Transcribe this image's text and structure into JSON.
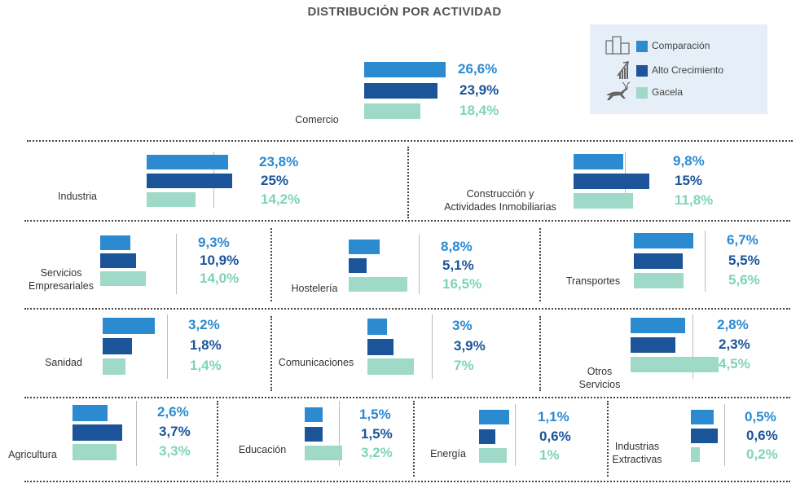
{
  "title": "DISTRIBUCIÓN POR ACTIVIDAD",
  "colors": {
    "comparacion": "#2b8ad0",
    "alto_crecimiento": "#1b5499",
    "gacela": "#9fd9c8",
    "value_comparacion": "#2b8ad0",
    "value_alto_crecimiento": "#1b5499",
    "value_gacela": "#7ed3bb",
    "icon": "#555555"
  },
  "legend": {
    "comparacion": {
      "label": "Comparación",
      "icon": "buildings-icon"
    },
    "alto_crecimiento": {
      "label": "Alto Crecimiento",
      "icon": "growth-arrow-icon"
    },
    "gacela": {
      "label": "Gacela",
      "icon": "gazelle-icon"
    }
  },
  "chart_data": {
    "type": "bar",
    "title": "DISTRIBUCIÓN POR ACTIVIDAD",
    "orientation": "horizontal",
    "series": [
      {
        "name": "Comparación",
        "unit": "%"
      },
      {
        "name": "Alto Crecimiento",
        "unit": "%"
      },
      {
        "name": "Gacela",
        "unit": "%"
      }
    ],
    "categories": [
      {
        "label": "Comercio",
        "icon": "shopping-cart-icon",
        "values": [
          26.6,
          23.9,
          18.4
        ],
        "labels": [
          "26,6%",
          "23,9%",
          "18,4%"
        ]
      },
      {
        "label": "Industria",
        "icon": "gears-icon",
        "values": [
          23.8,
          25,
          14.2
        ],
        "labels": [
          "23,8%",
          "25%",
          "14,2%"
        ]
      },
      {
        "label": "Construcción y\nActividades Inmobiliarias",
        "icon": "house-icon",
        "values": [
          9.8,
          15,
          11.8
        ],
        "labels": [
          "9,8%",
          "15%",
          "11,8%"
        ]
      },
      {
        "label": "Servicios\nEmpresariales",
        "icon": "people-icon",
        "values": [
          9.3,
          10.9,
          14.0
        ],
        "labels": [
          "9,3%",
          "10,9%",
          "14,0%"
        ]
      },
      {
        "label": "Hostelería",
        "icon": "cutlery-icon",
        "values": [
          8.8,
          5.1,
          16.5
        ],
        "labels": [
          "8,8%",
          "5,1%",
          "16,5%"
        ]
      },
      {
        "label": "Transportes",
        "icon": "vehicles-icon",
        "values": [
          6.7,
          5.5,
          5.6
        ],
        "labels": [
          "6,7%",
          "5,5%",
          "5,6%"
        ]
      },
      {
        "label": "Sanidad",
        "icon": "first-aid-kit-icon",
        "values": [
          3.2,
          1.8,
          1.4
        ],
        "labels": [
          "3,2%",
          "1,8%",
          "1,4%"
        ]
      },
      {
        "label": "Comunicaciones",
        "icon": "wifi-icon",
        "values": [
          3,
          3.9,
          7
        ],
        "labels": [
          "3%",
          "3,9%",
          "7%"
        ]
      },
      {
        "label": "Otros\nServicios",
        "icon": "store-icon",
        "values": [
          2.8,
          2.3,
          4.5
        ],
        "labels": [
          "2,8%",
          "2,3%",
          "4,5%"
        ]
      },
      {
        "label": "Agricultura",
        "icon": "carrot-icon",
        "values": [
          2.6,
          3.7,
          3.3
        ],
        "labels": [
          "2,6%",
          "3,7%",
          "3,3%"
        ]
      },
      {
        "label": "Educación",
        "icon": "books-icon",
        "values": [
          1.5,
          1.5,
          3.2
        ],
        "labels": [
          "1,5%",
          "1,5%",
          "3,2%"
        ]
      },
      {
        "label": "Energía",
        "icon": "lightbulb-icon",
        "values": [
          1.1,
          0.6,
          1
        ],
        "labels": [
          "1,1%",
          "0,6%",
          "1%"
        ]
      },
      {
        "label": "Industrias\nExtractivas",
        "icon": "barrier-icon",
        "values": [
          0.5,
          0.6,
          0.2
        ],
        "labels": [
          "0,5%",
          "0,6%",
          "0,2%"
        ]
      }
    ]
  }
}
